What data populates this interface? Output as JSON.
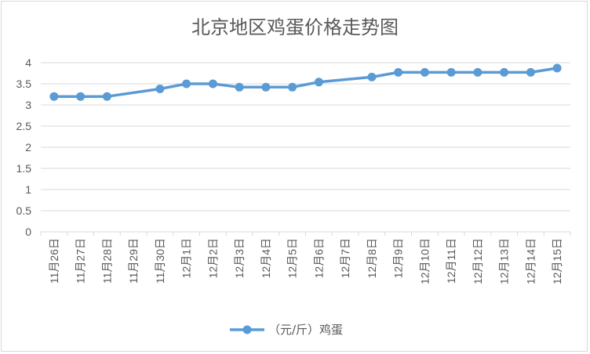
{
  "chart_data": {
    "type": "line",
    "title": "北京地区鸡蛋价格走势图",
    "categories": [
      "11月26日",
      "11月27日",
      "11月28日",
      "11月29日",
      "11月30日",
      "12月1日",
      "12月2日",
      "12月3日",
      "12月4日",
      "12月5日",
      "12月6日",
      "12月7日",
      "12月8日",
      "12月9日",
      "12月10日",
      "12月11日",
      "12月12日",
      "12月13日",
      "12月14日",
      "12月15日"
    ],
    "series": [
      {
        "name": "（元/斤）鸡蛋",
        "values": [
          3.2,
          3.2,
          3.2,
          null,
          3.38,
          3.5,
          3.5,
          3.42,
          3.42,
          3.42,
          3.54,
          null,
          3.66,
          3.77,
          3.77,
          3.77,
          3.77,
          3.77,
          3.77,
          3.87
        ],
        "color": "#5b9bd5"
      }
    ],
    "ylim": [
      0,
      4
    ],
    "yticks": [
      "0",
      "0.5",
      "1",
      "1.5",
      "2",
      "2.5",
      "3",
      "3.5",
      "4"
    ],
    "grid": true,
    "legend": "bottom"
  }
}
